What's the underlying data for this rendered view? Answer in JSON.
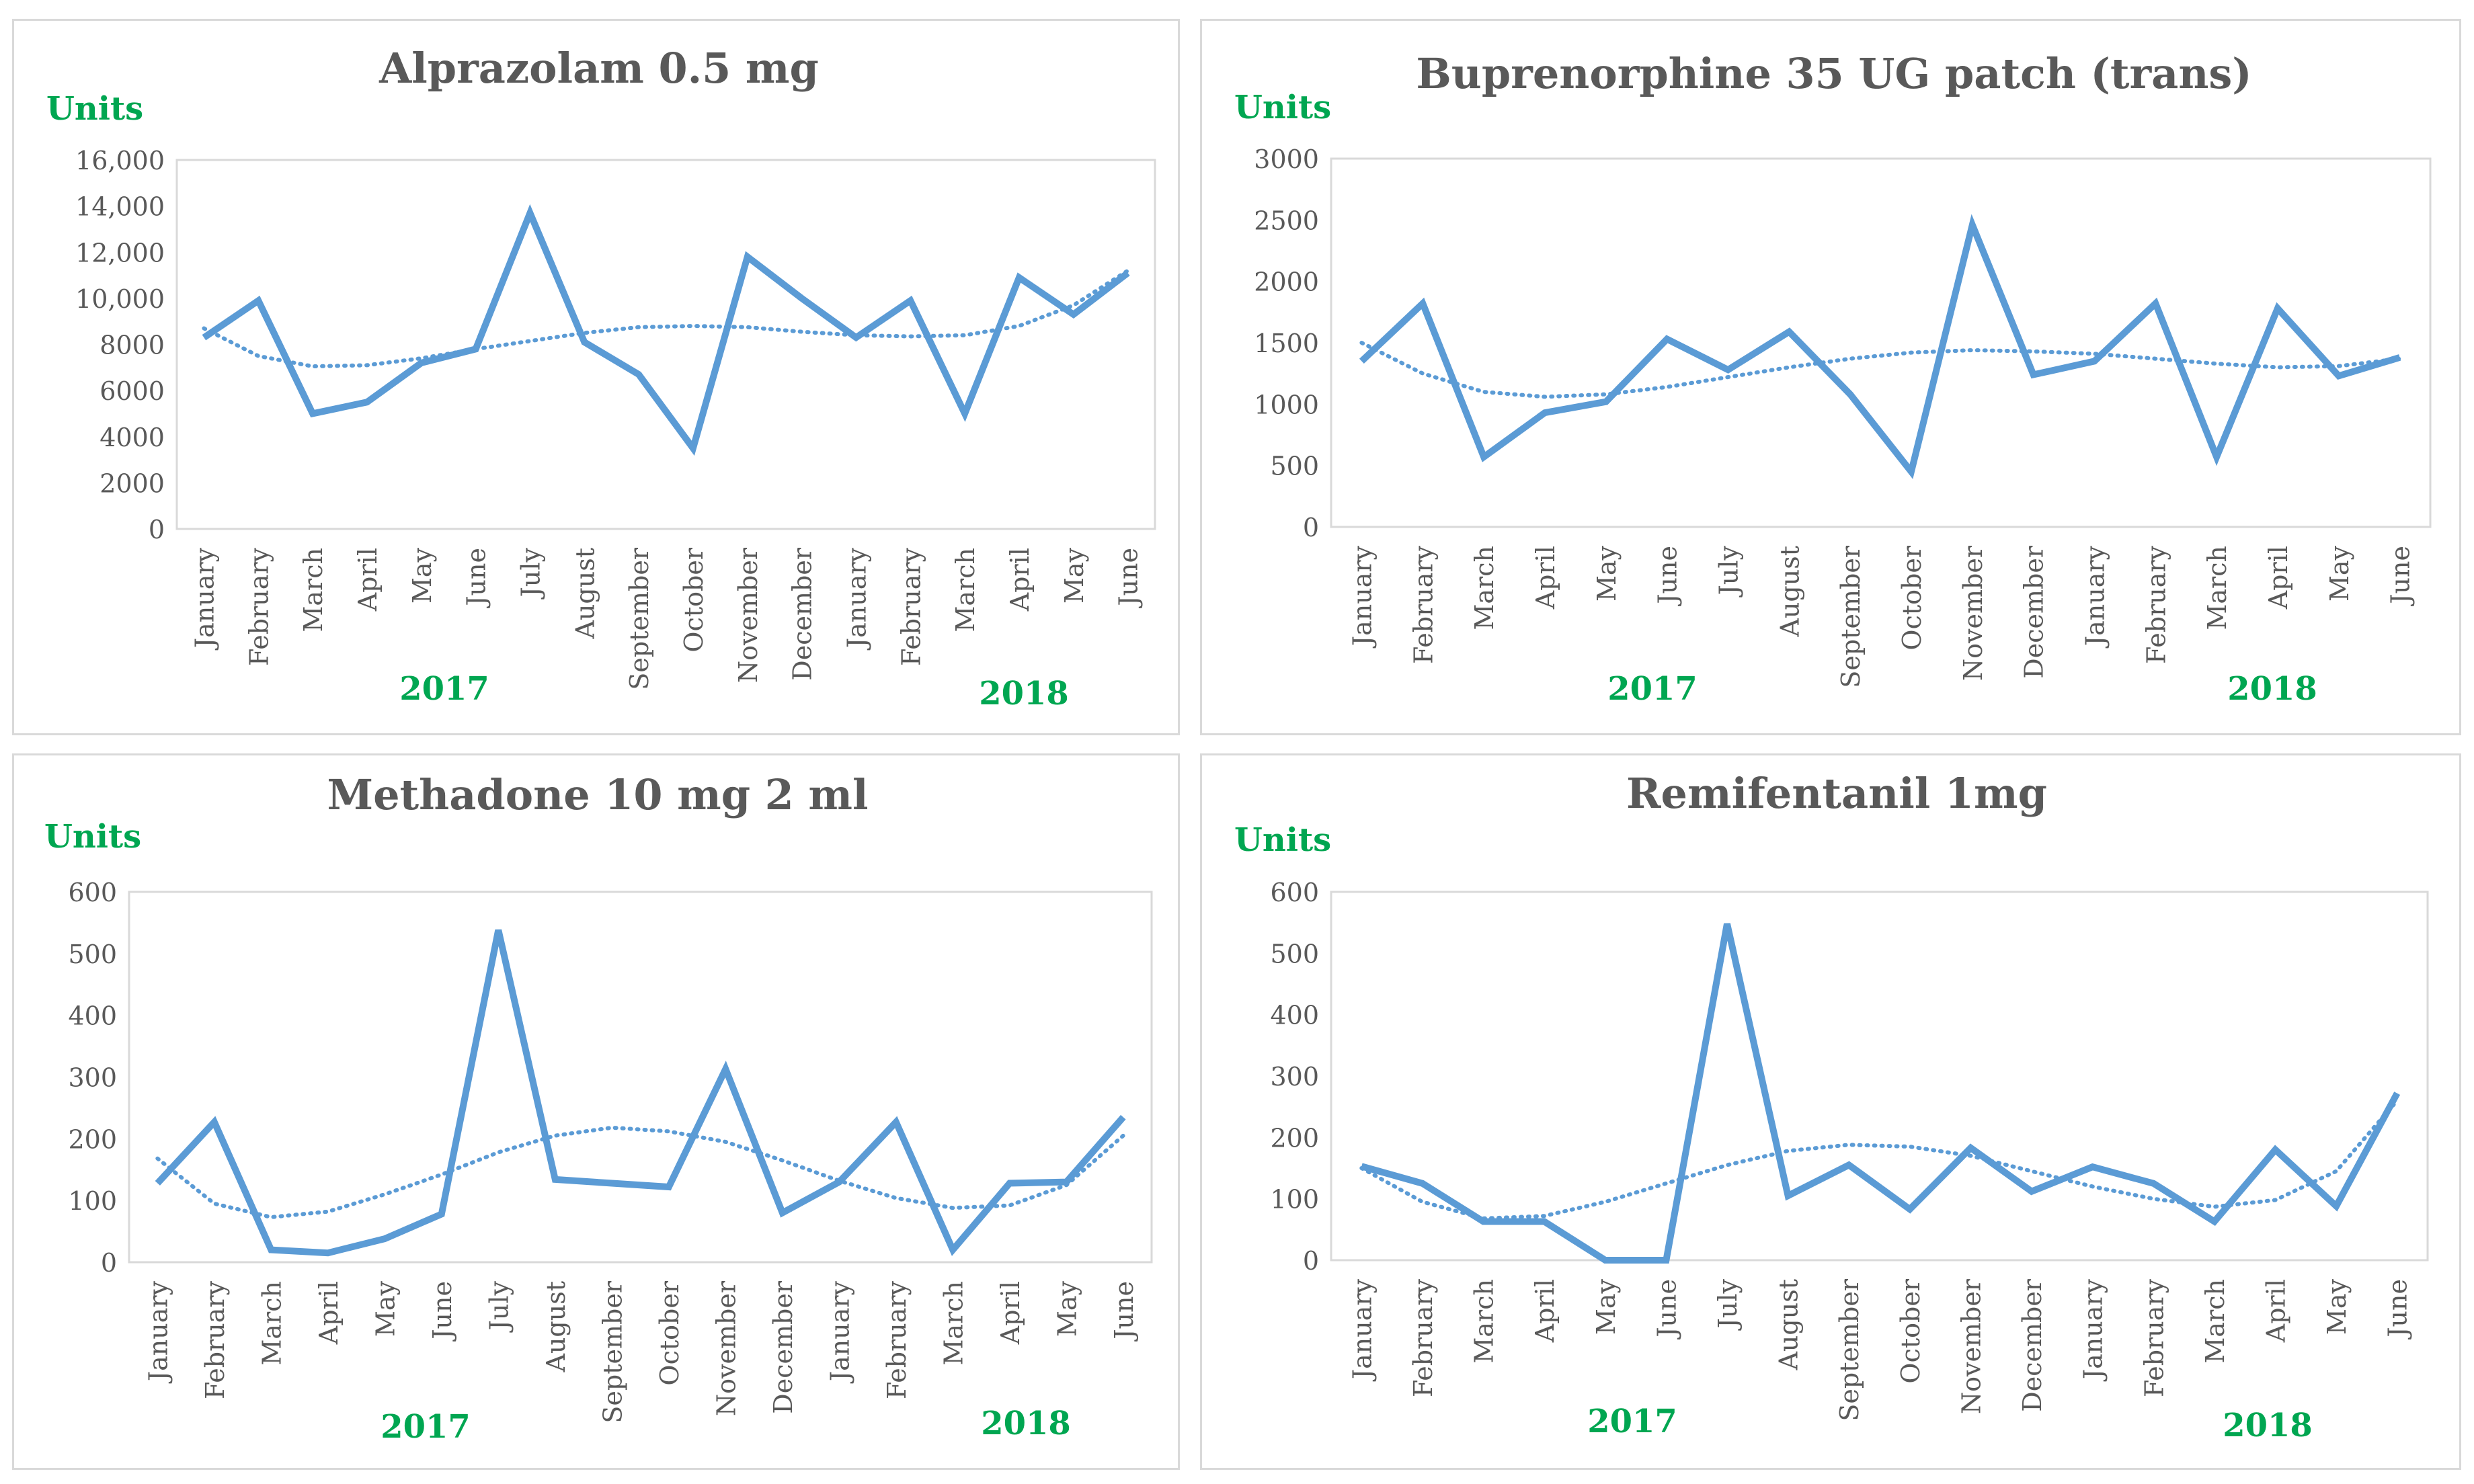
{
  "charts": [
    {
      "type": "line",
      "title": "Alprazolam 0.5 mg",
      "ylabel": "Units",
      "year_labels": [
        "2017",
        "2018"
      ],
      "categories": [
        "January",
        "February",
        "March",
        "April",
        "May",
        "June",
        "July",
        "August",
        "September",
        "October",
        "November",
        "December",
        "January",
        "February",
        "March",
        "April",
        "May",
        "June"
      ],
      "ylim": [
        0,
        16000
      ],
      "yticks": [
        "0",
        "2000",
        "4000",
        "6000",
        "8000",
        "10,000",
        "12,000",
        "14,000",
        "16,000"
      ],
      "series": [
        {
          "name": "Units",
          "values": [
            8300,
            9900,
            5000,
            5500,
            7200,
            7800,
            13700,
            8100,
            6700,
            3500,
            11800,
            10000,
            8300,
            9900,
            5000,
            10900,
            9300,
            11100
          ]
        }
      ],
      "trend": [
        8700,
        7500,
        7050,
        7100,
        7400,
        7800,
        8150,
        8500,
        8750,
        8800,
        8750,
        8550,
        8400,
        8350,
        8400,
        8800,
        9700,
        11200
      ],
      "colors": {
        "line": "#5b9bd5",
        "trend": "#5b9bd5"
      }
    },
    {
      "type": "line",
      "title": "Buprenorphine 35 UG patch (trans)",
      "ylabel": "Units",
      "year_labels": [
        "2017",
        "2018"
      ],
      "categories": [
        "January",
        "February",
        "March",
        "April",
        "May",
        "June",
        "July",
        "August",
        "September",
        "October",
        "November",
        "December",
        "January",
        "February",
        "March",
        "April",
        "May",
        "June"
      ],
      "ylim": [
        0,
        3000
      ],
      "yticks": [
        "0",
        "500",
        "1000",
        "1500",
        "2000",
        "2500",
        "3000"
      ],
      "series": [
        {
          "name": "Units",
          "values": [
            1350,
            1820,
            570,
            930,
            1020,
            1530,
            1280,
            1590,
            1080,
            450,
            2460,
            1240,
            1350,
            1820,
            570,
            1780,
            1230,
            1380
          ]
        }
      ],
      "trend": [
        1500,
        1250,
        1100,
        1060,
        1080,
        1140,
        1220,
        1300,
        1370,
        1420,
        1440,
        1430,
        1410,
        1370,
        1330,
        1300,
        1310,
        1370
      ],
      "colors": {
        "line": "#5b9bd5",
        "trend": "#5b9bd5"
      }
    },
    {
      "type": "line",
      "title": "Methadone 10 mg 2 ml",
      "ylabel": "Units",
      "year_labels": [
        "2017",
        "2018"
      ],
      "categories": [
        "January",
        "February",
        "March",
        "April",
        "May",
        "June",
        "July",
        "August",
        "September",
        "October",
        "November",
        "December",
        "January",
        "February",
        "March",
        "April",
        "May",
        "June"
      ],
      "ylim": [
        0,
        600
      ],
      "yticks": [
        "0",
        "100",
        "200",
        "300",
        "400",
        "500",
        "600"
      ],
      "series": [
        {
          "name": "Units",
          "values": [
            128,
            227,
            20,
            15,
            38,
            78,
            538,
            134,
            128,
            122,
            313,
            80,
            130,
            227,
            20,
            128,
            130,
            235
          ]
        }
      ],
      "trend": [
        168,
        95,
        73,
        82,
        110,
        142,
        178,
        205,
        218,
        212,
        195,
        165,
        132,
        104,
        88,
        92,
        125,
        205
      ],
      "colors": {
        "line": "#5b9bd5",
        "trend": "#5b9bd5"
      }
    },
    {
      "type": "line",
      "title": "Remifentanil 1mg",
      "ylabel": "Units",
      "year_labels": [
        "2017",
        "2018"
      ],
      "categories": [
        "January",
        "February",
        "March",
        "April",
        "May",
        "June",
        "July",
        "August",
        "September",
        "October",
        "November",
        "December",
        "January",
        "February",
        "March",
        "April",
        "May",
        "June"
      ],
      "ylim": [
        0,
        600
      ],
      "yticks": [
        "0",
        "100",
        "200",
        "300",
        "400",
        "500",
        "600"
      ],
      "series": [
        {
          "name": "Units",
          "values": [
            153,
            125,
            63,
            63,
            0,
            0,
            548,
            105,
            155,
            83,
            183,
            112,
            152,
            125,
            63,
            180,
            88,
            272
          ]
        }
      ],
      "trend": [
        150,
        95,
        68,
        72,
        95,
        125,
        155,
        178,
        188,
        185,
        170,
        145,
        120,
        100,
        87,
        98,
        145,
        260
      ],
      "colors": {
        "line": "#5b9bd5",
        "trend": "#5b9bd5"
      }
    }
  ]
}
